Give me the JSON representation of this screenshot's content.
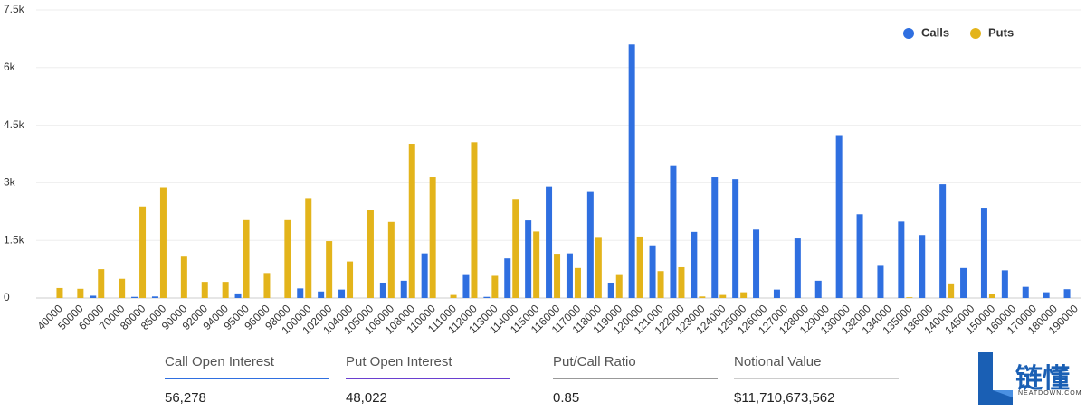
{
  "chart_data": {
    "type": "bar",
    "categories": [
      "40000",
      "50000",
      "60000",
      "70000",
      "80000",
      "85000",
      "90000",
      "92000",
      "94000",
      "95000",
      "96000",
      "98000",
      "100000",
      "102000",
      "104000",
      "105000",
      "106000",
      "108000",
      "110000",
      "111000",
      "112000",
      "113000",
      "114000",
      "115000",
      "116000",
      "117000",
      "118000",
      "119000",
      "120000",
      "121000",
      "122000",
      "123000",
      "124000",
      "125000",
      "126000",
      "127000",
      "128000",
      "129000",
      "130000",
      "132000",
      "134000",
      "135000",
      "136000",
      "140000",
      "145000",
      "150000",
      "160000",
      "170000",
      "180000",
      "190000"
    ],
    "series": [
      {
        "name": "Calls",
        "color": "#2f6fe0",
        "values": [
          0,
          0,
          60,
          0,
          30,
          40,
          0,
          0,
          0,
          120,
          0,
          0,
          250,
          170,
          220,
          0,
          400,
          450,
          1160,
          0,
          620,
          30,
          1030,
          2020,
          2900,
          1160,
          2760,
          400,
          6600,
          1370,
          3440,
          1720,
          3150,
          3100,
          1780,
          220,
          1550,
          450,
          4220,
          2180,
          860,
          1990,
          1640,
          2960,
          780,
          2350,
          720,
          290,
          150,
          230
        ]
      },
      {
        "name": "Puts",
        "color": "#e3b41b",
        "values": [
          260,
          240,
          750,
          500,
          2380,
          2880,
          1100,
          420,
          420,
          2050,
          650,
          2050,
          2600,
          1480,
          950,
          2300,
          1980,
          4020,
          3150,
          80,
          4060,
          600,
          2580,
          1730,
          1150,
          780,
          1590,
          620,
          1600,
          700,
          800,
          40,
          80,
          150,
          0,
          0,
          0,
          0,
          0,
          0,
          0,
          20,
          0,
          380,
          0,
          100,
          0,
          0,
          0,
          0
        ]
      }
    ],
    "ylim": [
      0,
      7500
    ],
    "yticks": [
      0,
      {
        "value": 1500,
        "label": "1.5k"
      },
      {
        "value": 3000,
        "label": "3k"
      },
      {
        "value": 4500,
        "label": "4.5k"
      },
      {
        "value": 6000,
        "label": "6k"
      },
      {
        "value": 7500,
        "label": "7.5k"
      }
    ],
    "grid": true,
    "legend": "top-right"
  },
  "summary": [
    {
      "label": "Call Open Interest",
      "value": "56,278"
    },
    {
      "label": "Put Open Interest",
      "value": "48,022"
    },
    {
      "label": "Put/Call Ratio",
      "value": "0.85"
    },
    {
      "label": "Notional Value",
      "value": "$11,710,673,562"
    }
  ],
  "watermark": {
    "text": "链懂",
    "subtext": "NEATDOWN.COM"
  }
}
